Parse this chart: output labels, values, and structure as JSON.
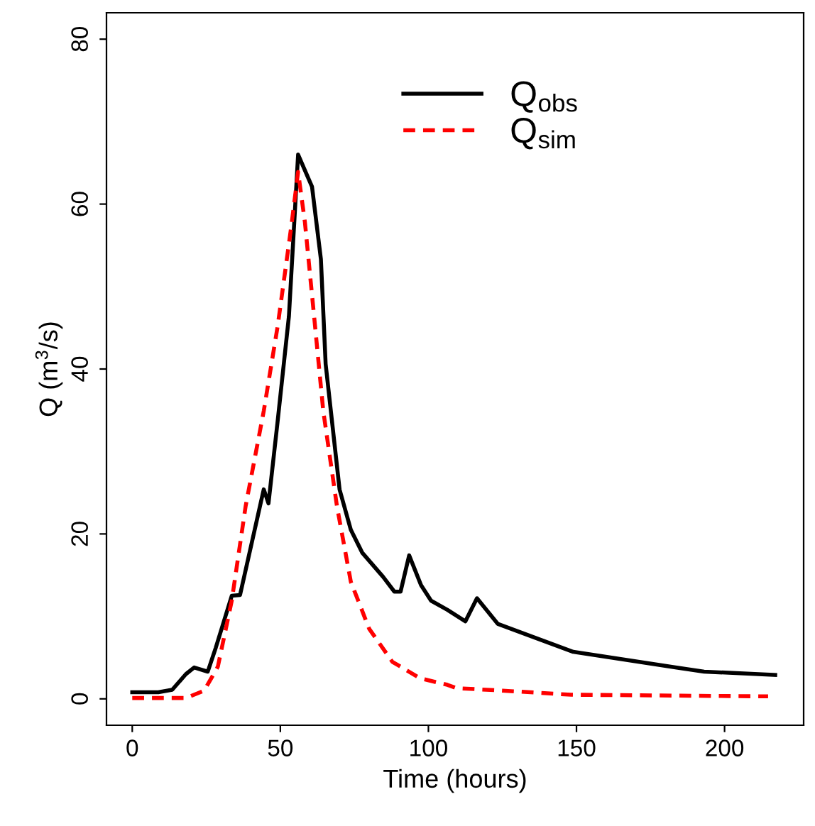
{
  "chart_data": {
    "type": "line",
    "xlabel": "Time (hours)",
    "ylabel": "Q (m$^{3}$/s)",
    "xlim": [
      -8.7,
      226.7
    ],
    "ylim": [
      -3.2,
      83.2
    ],
    "xticks": [
      0,
      50,
      100,
      150,
      200
    ],
    "yticks": [
      0,
      20,
      40,
      60,
      80
    ],
    "grid": false,
    "legend": "top right",
    "series": [
      {
        "name": "Q$_{obs}$",
        "color": "#000000",
        "line_style": "solid",
        "x": [
          0,
          8.8,
          13.5,
          18.1,
          20.9,
          25.5,
          28.2,
          33.6,
          36.4,
          44.4,
          46.0,
          49.1,
          52.9,
          56.0,
          60.7,
          63.7,
          65.3,
          70.0,
          73.8,
          77.7,
          84.7,
          88.5,
          90.6,
          93.5,
          97.5,
          100.9,
          106.4,
          112.5,
          116.4,
          123.4,
          148.9,
          183.8,
          193.1,
          217.1
        ],
        "values": [
          0.8,
          0.8,
          1.1,
          3.0,
          3.8,
          3.3,
          6.2,
          12.5,
          12.6,
          25.4,
          23.7,
          33.7,
          46.4,
          66.0,
          62.1,
          53.3,
          40.6,
          25.4,
          20.5,
          17.7,
          14.8,
          13.0,
          13.0,
          17.4,
          13.8,
          11.9,
          10.8,
          9.4,
          12.2,
          9.1,
          5.7,
          3.8,
          3.3,
          2.9
        ]
      },
      {
        "name": "Q$_{sim}$",
        "color": "#ff0000",
        "line_style": "dashed",
        "x": [
          0,
          18.1,
          24.3,
          28.9,
          33.6,
          38.3,
          44.4,
          49.1,
          53.7,
          56.0,
          58.3,
          61.4,
          64.5,
          69.1,
          73.8,
          80.0,
          87.8,
          97.1,
          106.4,
          109.5,
          125,
          148.2,
          214.7
        ],
        "values": [
          0.1,
          0.1,
          1.0,
          3.9,
          11.9,
          23.4,
          34.9,
          45.2,
          57.3,
          63.9,
          57.8,
          46.4,
          34.9,
          23.4,
          14.2,
          8.5,
          4.5,
          2.5,
          1.7,
          1.3,
          1.0,
          0.5,
          0.3
        ]
      }
    ]
  }
}
